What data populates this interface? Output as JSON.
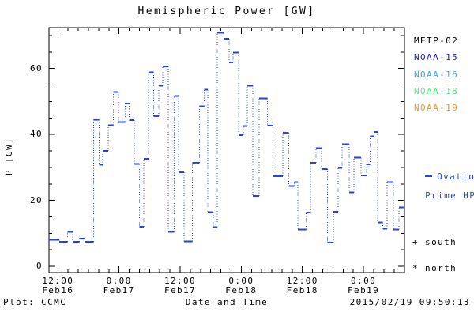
{
  "title": "Hemispheric Power [GW]",
  "axes": {
    "ylabel": "P [GW]",
    "xlabel": "Date and Time",
    "yticks": [
      0,
      20,
      40,
      60
    ],
    "y_minor_step": 5,
    "x_minor_step": 2,
    "xticks": [
      {
        "t": 12,
        "time": "12:00",
        "date": "Feb16"
      },
      {
        "t": 24,
        "time": "0:00",
        "date": "Feb17"
      },
      {
        "t": 36,
        "time": "12:00",
        "date": "Feb17"
      },
      {
        "t": 48,
        "time": "0:00",
        "date": "Feb18"
      },
      {
        "t": 60,
        "time": "12:00",
        "date": "Feb18"
      },
      {
        "t": 72,
        "time": "0:00",
        "date": "Feb19"
      }
    ]
  },
  "legend": {
    "satellites": [
      {
        "label": "METP-02",
        "color": "#000000"
      },
      {
        "label": "NOAA-15",
        "color": "#1a1ad6"
      },
      {
        "label": "NOAA-16",
        "color": "#33aaee"
      },
      {
        "label": "NOAA-18",
        "color": "#55e888"
      },
      {
        "label": "NOAA-19",
        "color": "#ee9a22"
      }
    ],
    "ovation": {
      "line1": "Ovation",
      "line2": "Prime HPI"
    },
    "south": "+ south",
    "north": "* north"
  },
  "footer": {
    "left": "Plot: CCMC",
    "timestamp": "2015/02/19 09:50:13"
  },
  "chart_data": {
    "type": "line",
    "step": true,
    "title": "Hemispheric Power [GW]",
    "xlabel": "Date and Time",
    "ylabel": "P [GW]",
    "x_unit": "hours since 2015-02-16 00:00 UT",
    "xlim": [
      10.25,
      80.05
    ],
    "ylim": [
      -1.9,
      72.4
    ],
    "grid": false,
    "legend_position": "right-outside",
    "series": [
      {
        "name": "Ovation Prime HPI",
        "color": "#2244dd",
        "t_end": 80.05,
        "points": [
          [
            10.25,
            8.1
          ],
          [
            12.3,
            7.4
          ],
          [
            13.9,
            10.5
          ],
          [
            14.9,
            7.4
          ],
          [
            16.2,
            8.4
          ],
          [
            17.3,
            7.4
          ],
          [
            19.0,
            44.5
          ],
          [
            20.1,
            30.8
          ],
          [
            20.8,
            35.0
          ],
          [
            21.9,
            42.8
          ],
          [
            22.9,
            52.9
          ],
          [
            23.9,
            43.8
          ],
          [
            25.2,
            49.4
          ],
          [
            26.0,
            44.3
          ],
          [
            27.0,
            31.0
          ],
          [
            28.0,
            12.0
          ],
          [
            28.9,
            32.6
          ],
          [
            29.8,
            58.8
          ],
          [
            30.8,
            45.5
          ],
          [
            31.8,
            54.8
          ],
          [
            32.6,
            60.7
          ],
          [
            33.7,
            10.5
          ],
          [
            34.8,
            51.7
          ],
          [
            35.7,
            28.5
          ],
          [
            36.8,
            7.6
          ],
          [
            38.4,
            31.4
          ],
          [
            39.8,
            48.6
          ],
          [
            40.7,
            53.6
          ],
          [
            41.4,
            16.4
          ],
          [
            42.5,
            11.9
          ],
          [
            43.3,
            70.9
          ],
          [
            44.6,
            69.0
          ],
          [
            45.6,
            61.9
          ],
          [
            46.4,
            64.8
          ],
          [
            47.5,
            39.8
          ],
          [
            48.4,
            42.6
          ],
          [
            49.2,
            54.8
          ],
          [
            50.3,
            21.4
          ],
          [
            51.5,
            50.9
          ],
          [
            53.1,
            42.7
          ],
          [
            54.2,
            27.4
          ],
          [
            56.2,
            40.5
          ],
          [
            57.3,
            24.3
          ],
          [
            58.4,
            25.5
          ],
          [
            59.1,
            11.2
          ],
          [
            60.7,
            16.3
          ],
          [
            61.6,
            31.4
          ],
          [
            62.7,
            35.8
          ],
          [
            63.8,
            29.5
          ],
          [
            64.9,
            7.2
          ],
          [
            66.1,
            16.5
          ],
          [
            67.0,
            29.8
          ],
          [
            67.8,
            37.0
          ],
          [
            69.2,
            22.4
          ],
          [
            70.1,
            33.0
          ],
          [
            71.5,
            27.6
          ],
          [
            72.6,
            30.9
          ],
          [
            73.3,
            39.5
          ],
          [
            74.1,
            40.8
          ],
          [
            74.8,
            13.3
          ],
          [
            75.8,
            11.4
          ],
          [
            76.6,
            25.5
          ],
          [
            77.9,
            11.2
          ],
          [
            79.0,
            17.9
          ]
        ]
      }
    ]
  }
}
